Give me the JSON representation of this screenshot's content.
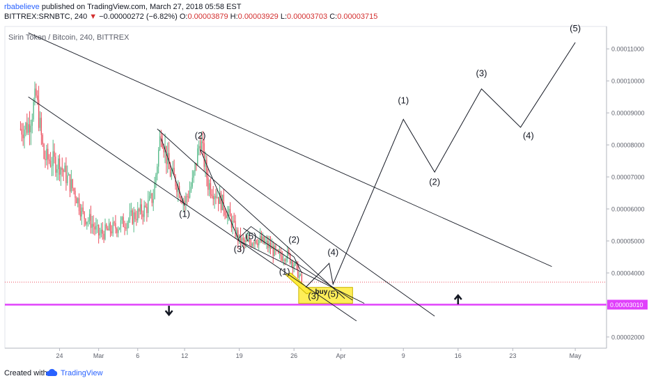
{
  "header": {
    "author": "rbabelieve",
    "published_text": " published on TradingView.com, March 27, 2018 05:58 EST",
    "symbol_interval": "BITTREX:SRNBTC, 240",
    "change_arrow": "▼",
    "change": "−0.00000272 (−6.82%)",
    "open_label": "O:",
    "open": "0.00003879",
    "high_label": "H:",
    "high": "0.00003929",
    "low_label": "L:",
    "low": "0.00003703",
    "close_label": "C:",
    "close": "0.00003715"
  },
  "footer": {
    "created_with": "Created with",
    "brand": "TradingView"
  },
  "colors": {
    "up": "#53b987",
    "down": "#eb4d5c",
    "support": "#e040fb",
    "buy_zone": "#ffeb3b"
  },
  "chart_data": {
    "type": "candlestick",
    "title": "Sirin Token / Bitcoin, 240, BITTREX",
    "x_ticks": [
      "24",
      "Mar",
      "6",
      "12",
      "19",
      "26",
      "Apr",
      "9",
      "16",
      "23",
      "May"
    ],
    "y_ticks": [
      "0.00011000",
      "0.00010000",
      "0.00009000",
      "0.00008000",
      "0.00007000",
      "0.00006000",
      "0.00005000",
      "0.00004000",
      "0.00002000"
    ],
    "ylim": [
      1.65e-05,
      0.000117
    ],
    "support_price_label": "0.00003010",
    "support_price": 3.01e-05,
    "last_price": 3.715e-05,
    "candle_anchors": [
      [
        "Feb 19",
        8.5e-05
      ],
      [
        "Feb 20",
        8.6e-05
      ],
      [
        "Feb 21",
        9.5e-05
      ],
      [
        "Feb 22",
        7.6e-05
      ],
      [
        "Feb 24",
        7.4e-05
      ],
      [
        "Feb 26",
        6.5e-05
      ],
      [
        "Feb 27",
        5.8e-05
      ],
      [
        "Feb 28",
        5.6e-05
      ],
      [
        "Mar 1",
        5.2e-05
      ],
      [
        "Mar 3",
        5.4e-05
      ],
      [
        "Mar 5",
        5.7e-05
      ],
      [
        "Mar 7",
        6e-05
      ],
      [
        "Mar 8",
        6.4e-05
      ],
      [
        "Mar 9",
        8.5e-05
      ],
      [
        "Mar 10",
        7.2e-05
      ],
      [
        "Mar 11",
        6.8e-05
      ],
      [
        "Mar 12",
        6.2e-05
      ],
      [
        "Mar 13",
        6.8e-05
      ],
      [
        "Mar 14",
        8.2e-05
      ],
      [
        "Mar 15",
        6.8e-05
      ],
      [
        "Mar 16",
        6.5e-05
      ],
      [
        "Mar 17",
        6.1e-05
      ],
      [
        "Mar 18",
        5.6e-05
      ],
      [
        "Mar 19",
        5e-05
      ],
      [
        "Mar 20",
        4.9e-05
      ],
      [
        "Mar 21",
        5.1e-05
      ],
      [
        "Mar 23",
        4.8e-05
      ],
      [
        "Mar 24",
        4.5e-05
      ],
      [
        "Mar 25",
        4.6e-05
      ],
      [
        "Mar 26",
        4.3e-05
      ],
      [
        "Mar 27",
        3.715e-05
      ]
    ],
    "wave_labels": [
      {
        "text": "(2)",
        "x": "Mar 14",
        "y": 8.2e-05
      },
      {
        "text": "(1)",
        "x": "Mar 12",
        "y": 5.75e-05
      },
      {
        "text": "(3)",
        "x": "Mar 19",
        "y": 4.65e-05
      },
      {
        "text": "(5)",
        "x": "Mar 20.5",
        "y": 5.05e-05
      },
      {
        "text": "(2)",
        "x": "Mar 26",
        "y": 4.95e-05
      },
      {
        "text": "(1)",
        "x": "Mar 24.8",
        "y": 3.95e-05
      },
      {
        "text": "(4)",
        "x": "Mar 31",
        "y": 4.55e-05
      },
      {
        "text": "(3)",
        "x": "Mar 28.5",
        "y": 3.18e-05
      },
      {
        "text": "(5)",
        "x": "Mar 31",
        "y": 3.25e-05
      },
      {
        "text": "(1)",
        "x": "Apr 9",
        "y": 9.3e-05
      },
      {
        "text": "(2)",
        "x": "Apr 13",
        "y": 6.75e-05
      },
      {
        "text": "(3)",
        "x": "Apr 19",
        "y": 0.0001015
      },
      {
        "text": "(4)",
        "x": "Apr 25",
        "y": 8.2e-05
      },
      {
        "text": "(5)",
        "x": "May 1",
        "y": 0.0001155
      }
    ],
    "buy_label": "buy",
    "projection_path": [
      [
        "Mar 27.5",
        3.55e-05
      ],
      [
        "Mar 30.5",
        4.3e-05
      ],
      [
        "Mar 31",
        3.65e-05
      ],
      [
        "Apr 9",
        8.8e-05
      ],
      [
        "Apr 13",
        7.15e-05
      ],
      [
        "Apr 19",
        9.75e-05
      ],
      [
        "Apr 24",
        8.55e-05
      ],
      [
        "May 1",
        0.000112
      ]
    ]
  }
}
